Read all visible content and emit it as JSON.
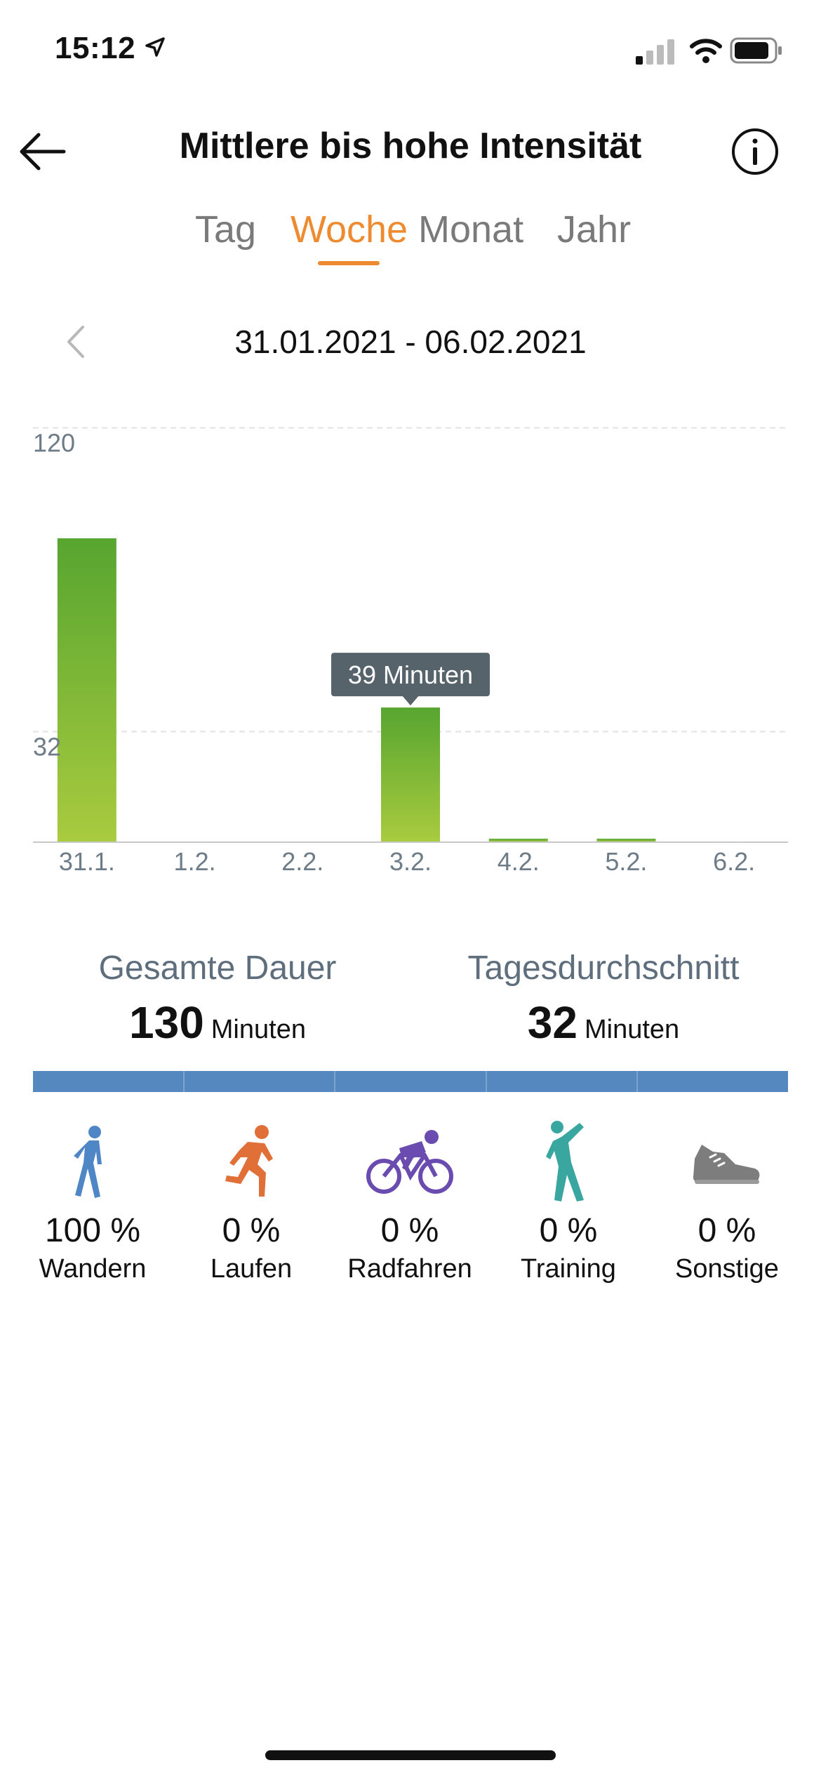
{
  "status_bar": {
    "time": "15:12"
  },
  "header": {
    "title": "Mittlere bis hohe Intensität"
  },
  "tabs": [
    {
      "label": "Tag",
      "active": false
    },
    {
      "label": "Woche",
      "active": true
    },
    {
      "label": "Monat",
      "active": false
    },
    {
      "label": "Jahr",
      "active": false
    }
  ],
  "date_nav": {
    "range": "31.01.2021 - 06.02.2021"
  },
  "colors": {
    "accent": "#ee8a2f",
    "bar_top": "#57a530",
    "bar_bottom": "#a9cb3f",
    "distribution": "#5688c0"
  },
  "chart_data": {
    "type": "bar",
    "categories": [
      "31.1.",
      "1.2.",
      "2.2.",
      "3.2.",
      "4.2.",
      "5.2.",
      "6.2."
    ],
    "values": [
      88,
      0,
      0,
      39,
      1,
      1,
      0
    ],
    "y_ticks": [
      {
        "value": 32,
        "label": "32"
      },
      {
        "value": 120,
        "label": "120"
      }
    ],
    "ylim": [
      0,
      120
    ],
    "tooltip": {
      "category": "3.2.",
      "text": "39 Minuten"
    }
  },
  "summary": {
    "total": {
      "label": "Gesamte Dauer",
      "value": "130",
      "unit": "Minuten"
    },
    "average": {
      "label": "Tagesdurchschnitt",
      "value": "32",
      "unit": "Minuten"
    }
  },
  "activities": [
    {
      "icon": "walking-icon",
      "percent": "100 %",
      "name": "Wandern",
      "color": "#4f86c6"
    },
    {
      "icon": "running-icon",
      "percent": "0 %",
      "name": "Laufen",
      "color": "#e07038"
    },
    {
      "icon": "cycling-icon",
      "percent": "0 %",
      "name": "Radfahren",
      "color": "#6a4cb0"
    },
    {
      "icon": "training-icon",
      "percent": "0 %",
      "name": "Training",
      "color": "#3aa6a0"
    },
    {
      "icon": "shoe-icon",
      "percent": "0 %",
      "name": "Sonstige",
      "color": "#7d7d7d"
    }
  ]
}
